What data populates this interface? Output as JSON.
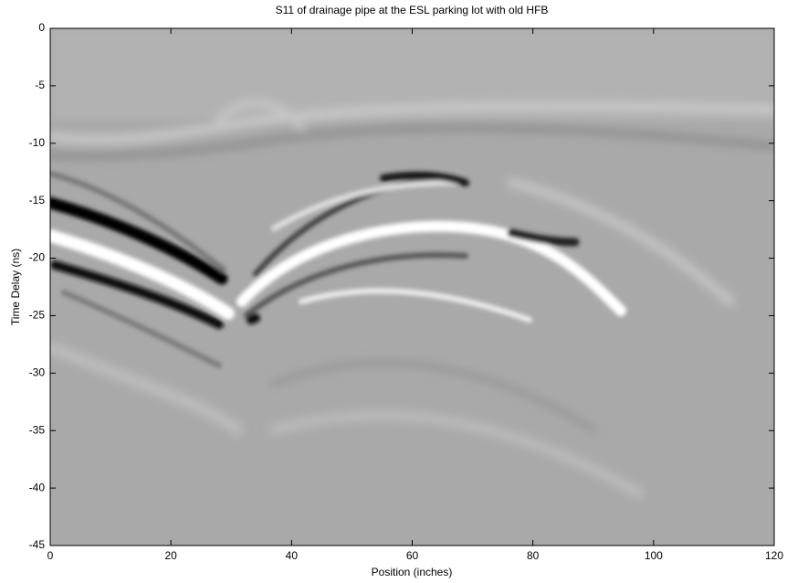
{
  "chart_data": {
    "type": "image",
    "title": "S11 of drainage pipe at the ESL parking lot with old HFB",
    "x_label": "Position (inches)",
    "y_label": "Time Delay (ns)",
    "xlim": [
      0,
      120
    ],
    "ylim": [
      -45,
      0
    ],
    "xticks": [
      0,
      20,
      40,
      60,
      80,
      100,
      120
    ],
    "yticks": [
      0,
      -5,
      -10,
      -15,
      -20,
      -25,
      -30,
      -35,
      -40,
      -45
    ]
  }
}
